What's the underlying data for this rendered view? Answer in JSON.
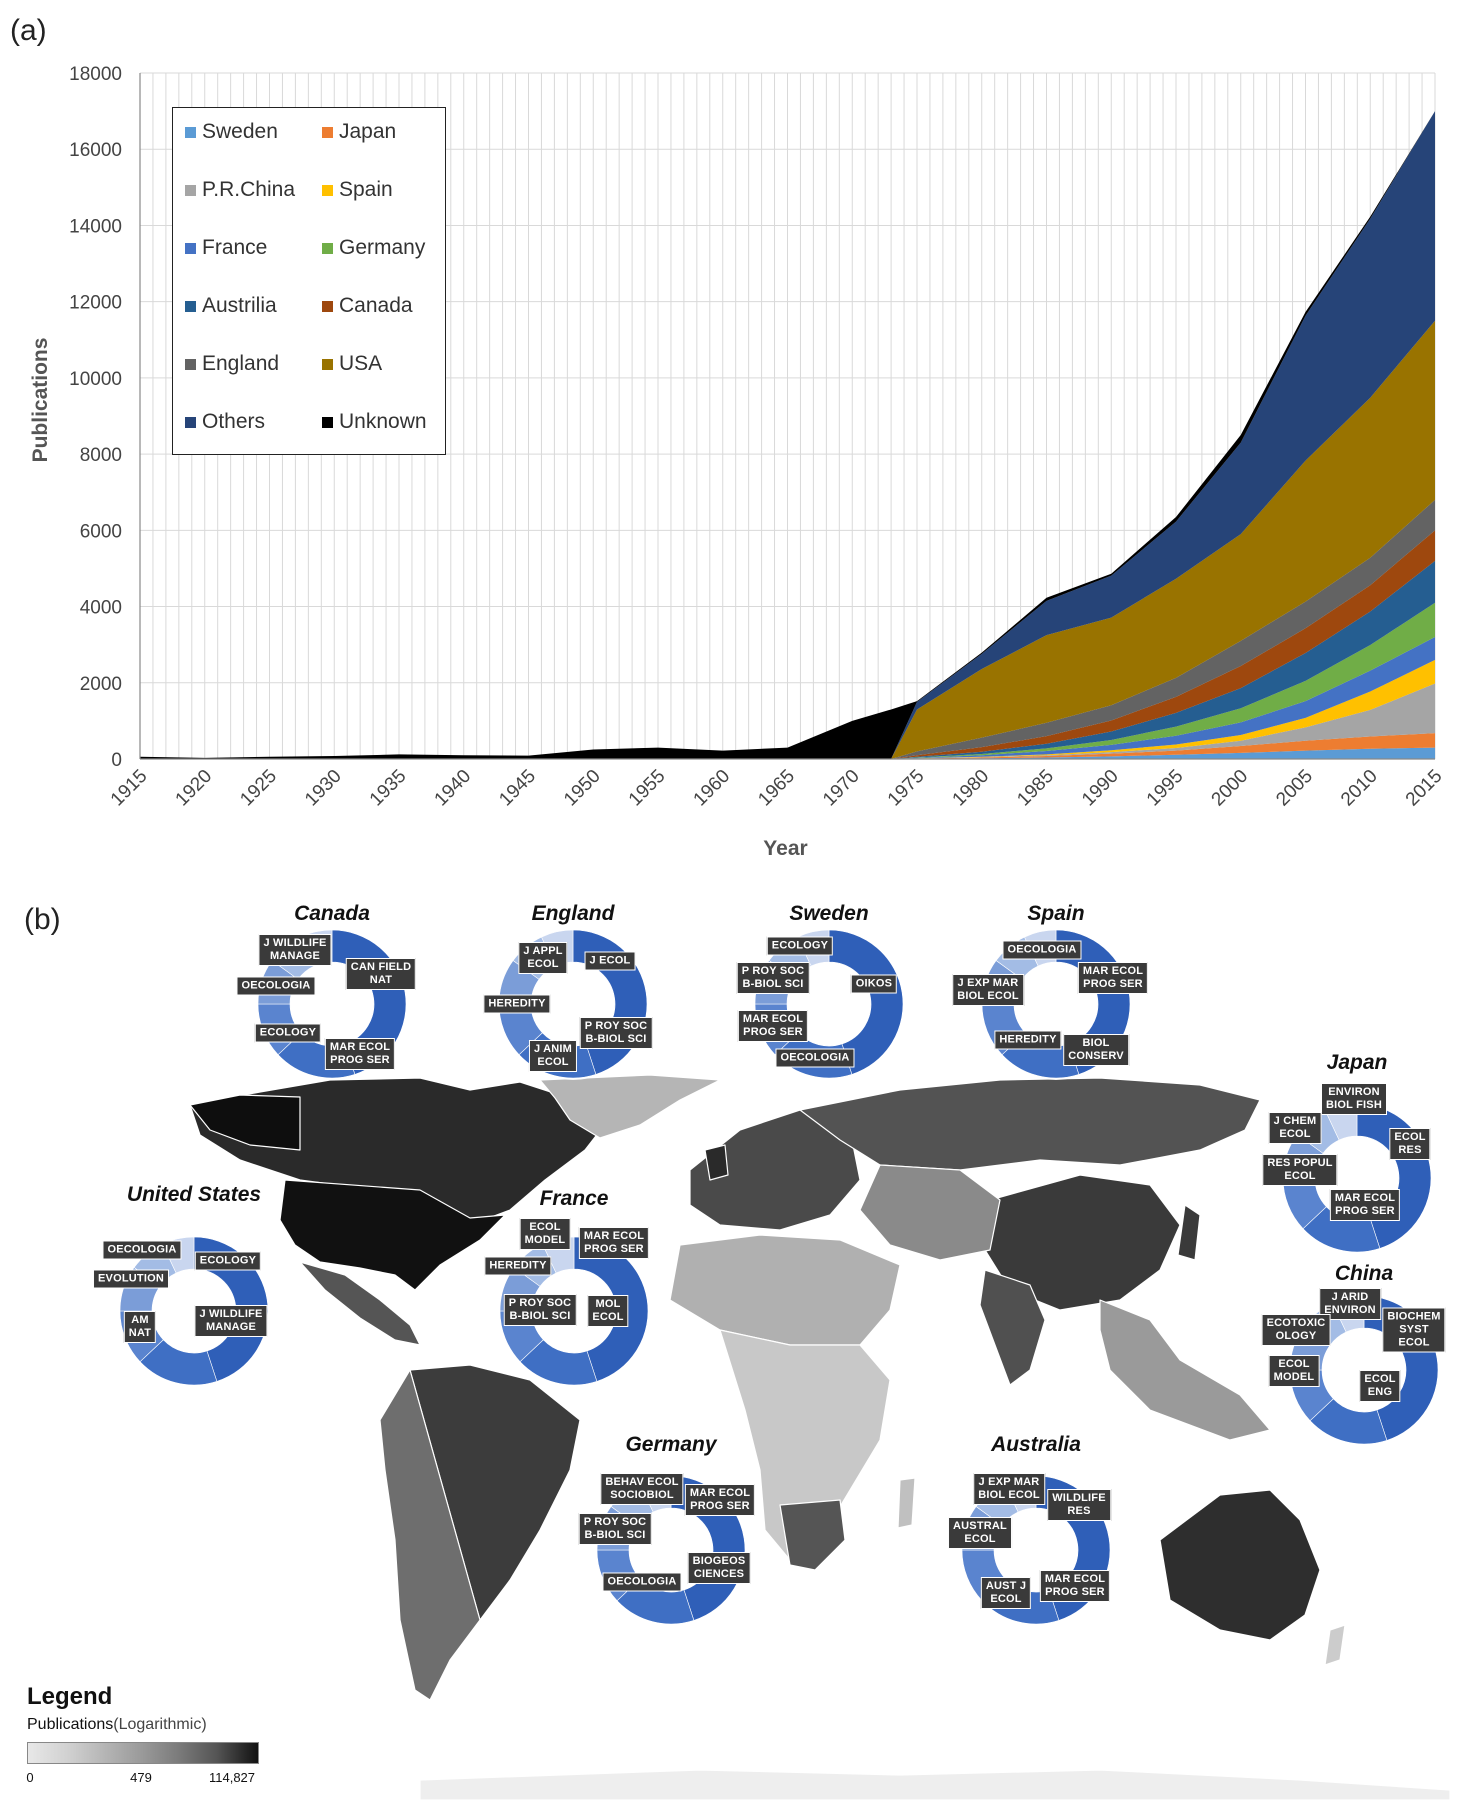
{
  "panel_a_label": "(a)",
  "panel_b_label": "(b)",
  "chart_data": [
    {
      "type": "area",
      "stacked": true,
      "xlabel": "Year",
      "ylabel": "Publications",
      "ylim": [
        0,
        18000
      ],
      "xlim": [
        1915,
        2015
      ],
      "yticks": [
        "0",
        "2000",
        "4000",
        "6000",
        "8000",
        "10000",
        "12000",
        "14000",
        "16000",
        "18000"
      ],
      "xticks": [
        "1915",
        "1920",
        "1925",
        "1930",
        "1935",
        "1940",
        "1945",
        "1950",
        "1955",
        "1960",
        "1965",
        "1970",
        "1975",
        "1980",
        "1985",
        "1990",
        "1995",
        "2000",
        "2005",
        "2010",
        "2015"
      ],
      "grid": true,
      "legend_position": "top-left",
      "legend": [
        {
          "name": "Sweden",
          "color": "#5b9bd5"
        },
        {
          "name": "Japan",
          "color": "#ed7d31"
        },
        {
          "name": "P.R.China",
          "color": "#a5a5a5"
        },
        {
          "name": "Spain",
          "color": "#ffc000"
        },
        {
          "name": "France",
          "color": "#4472c4"
        },
        {
          "name": "Germany",
          "color": "#70ad47"
        },
        {
          "name": "Austrilia",
          "color": "#255e91"
        },
        {
          "name": "Canada",
          "color": "#9e480e"
        },
        {
          "name": "England",
          "color": "#636363"
        },
        {
          "name": "USA",
          "color": "#997300"
        },
        {
          "name": "Others",
          "color": "#264478"
        },
        {
          "name": "Unknown",
          "color": "#000000"
        }
      ],
      "x": [
        1915,
        1920,
        1925,
        1930,
        1935,
        1940,
        1945,
        1950,
        1955,
        1960,
        1965,
        1970,
        1973,
        1975,
        1980,
        1985,
        1990,
        1995,
        2000,
        2005,
        2010,
        2015
      ],
      "series": [
        {
          "name": "Sweden",
          "values": [
            0,
            0,
            0,
            0,
            0,
            0,
            0,
            0,
            0,
            0,
            0,
            0,
            0,
            5,
            20,
            40,
            70,
            110,
            160,
            220,
            270,
            300
          ]
        },
        {
          "name": "Japan",
          "values": [
            0,
            0,
            0,
            0,
            0,
            0,
            0,
            0,
            0,
            0,
            0,
            0,
            0,
            5,
            20,
            40,
            70,
            110,
            180,
            260,
            320,
            380
          ]
        },
        {
          "name": "P.R.China",
          "values": [
            0,
            0,
            0,
            0,
            0,
            0,
            0,
            0,
            0,
            0,
            0,
            0,
            0,
            5,
            10,
            20,
            40,
            70,
            140,
            350,
            700,
            1300
          ]
        },
        {
          "name": "Spain",
          "values": [
            0,
            0,
            0,
            0,
            0,
            0,
            0,
            0,
            0,
            0,
            0,
            0,
            0,
            5,
            10,
            20,
            50,
            90,
            150,
            250,
            480,
            620
          ]
        },
        {
          "name": "France",
          "values": [
            0,
            0,
            0,
            0,
            0,
            0,
            0,
            0,
            0,
            0,
            0,
            0,
            0,
            10,
            40,
            90,
            140,
            230,
            330,
            440,
            550,
            600
          ]
        },
        {
          "name": "Germany",
          "values": [
            0,
            0,
            0,
            0,
            0,
            0,
            0,
            0,
            0,
            0,
            0,
            0,
            0,
            10,
            30,
            70,
            130,
            240,
            370,
            530,
            670,
            900
          ]
        },
        {
          "name": "Austrilia",
          "values": [
            0,
            0,
            0,
            0,
            0,
            0,
            0,
            0,
            0,
            0,
            0,
            0,
            0,
            20,
            60,
            120,
            220,
            360,
            530,
            730,
            880,
            1100
          ]
        },
        {
          "name": "Canada",
          "values": [
            0,
            0,
            0,
            0,
            0,
            0,
            0,
            0,
            0,
            0,
            0,
            0,
            0,
            40,
            120,
            200,
            290,
            420,
            580,
            650,
            690,
            800
          ]
        },
        {
          "name": "England",
          "values": [
            0,
            0,
            0,
            0,
            0,
            0,
            0,
            0,
            0,
            0,
            0,
            0,
            0,
            100,
            250,
            350,
            400,
            500,
            660,
            700,
            720,
            800
          ]
        },
        {
          "name": "USA",
          "values": [
            0,
            0,
            0,
            0,
            0,
            0,
            0,
            0,
            0,
            0,
            0,
            0,
            0,
            1100,
            1800,
            2300,
            2300,
            2600,
            2800,
            3700,
            4200,
            4700
          ]
        },
        {
          "name": "Others",
          "values": [
            0,
            0,
            0,
            0,
            0,
            0,
            0,
            0,
            0,
            0,
            0,
            0,
            0,
            200,
            400,
            900,
            1100,
            1500,
            2400,
            3800,
            4700,
            5500
          ]
        },
        {
          "name": "Unknown",
          "values": [
            60,
            30,
            60,
            80,
            120,
            100,
            90,
            250,
            300,
            220,
            300,
            1000,
            1300,
            20,
            30,
            80,
            50,
            120,
            200,
            100,
            50,
            0
          ]
        }
      ]
    },
    {
      "type": "map",
      "title": "",
      "countries": [
        {
          "name": "Canada",
          "journals": [
            "J WILDLIFE\nMANAGE",
            "CAN FIELD\nNAT",
            "OECOLOGIA",
            "ECOLOGY",
            "MAR ECOL\nPROG SER"
          ]
        },
        {
          "name": "England",
          "journals": [
            "J APPL\nECOL",
            "J ECOL",
            "HEREDITY",
            "P ROY SOC\nB-BIOL SCI",
            "J ANIM\nECOL"
          ]
        },
        {
          "name": "Sweden",
          "journals": [
            "ECOLOGY",
            "P ROY SOC\nB-BIOL SCI",
            "OIKOS",
            "MAR ECOL\nPROG SER",
            "OECOLOGIA"
          ]
        },
        {
          "name": "Spain",
          "journals": [
            "OECOLOGIA",
            "MAR ECOL\nPROG SER",
            "J EXP MAR\nBIOL ECOL",
            "HEREDITY",
            "BIOL\nCONSERV"
          ]
        },
        {
          "name": "Japan",
          "journals": [
            "ENVIRON\nBIOL FISH",
            "J CHEM\nECOL",
            "ECOL\nRES",
            "RES POPUL\nECOL",
            "MAR ECOL\nPROG SER"
          ]
        },
        {
          "name": "United States",
          "journals": [
            "OECOLOGIA",
            "ECOLOGY",
            "EVOLUTION",
            "AM\nNAT",
            "J WILDLIFE\nMANAGE"
          ]
        },
        {
          "name": "France",
          "journals": [
            "ECOL\nMODEL",
            "MAR ECOL\nPROG SER",
            "HEREDITY",
            "P ROY SOC\nB-BIOL SCI",
            "MOL\nECOL"
          ]
        },
        {
          "name": "China",
          "journals": [
            "J ARID\nENVIRON",
            "ECOTOXIC\nOLOGY",
            "BIOCHEM\nSYST ECOL",
            "ECOL\nMODEL",
            "ECOL\nENG"
          ]
        },
        {
          "name": "Germany",
          "journals": [
            "BEHAV ECOL\nSOCIOBIOL",
            "MAR ECOL\nPROG SER",
            "P ROY SOC\nB-BIOL SCI",
            "OECOLOGIA",
            "BIOGEOS\nCIENCES"
          ]
        },
        {
          "name": "Australia",
          "journals": [
            "J EXP MAR\nBIOL ECOL",
            "WILDLIFE\nRES",
            "AUSTRAL\nECOL",
            "AUST J\nECOL",
            "MAR ECOL\nPROG SER"
          ]
        }
      ]
    }
  ],
  "map_legend": {
    "title": "Legend",
    "subtitle_main": "Publications",
    "subtitle_note": "(Logarithmic)",
    "ticks": [
      "0",
      "479",
      "114,827"
    ]
  }
}
